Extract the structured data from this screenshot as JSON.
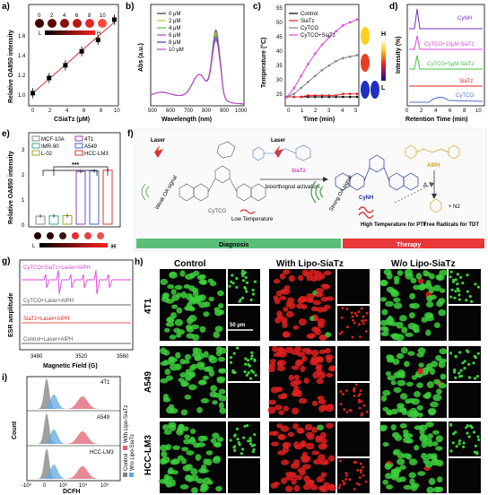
{
  "panels": {
    "a": {
      "label": "a)",
      "ylabel": "Relative OA850 intensity",
      "xlabel": "CSiaTz (μM)",
      "xticks": [
        "0",
        "2",
        "4",
        "6",
        "8",
        "10"
      ],
      "yticks": [
        "1.0",
        "1.2",
        "1.4",
        "1.6"
      ],
      "strip_labels": [
        "0",
        "2",
        "4",
        "6",
        "8",
        "10"
      ],
      "L": "L",
      "H": "H"
    },
    "b": {
      "label": "b)",
      "ylabel": "Abs (a.u.)",
      "xlabel": "Wavelength (nm)",
      "xticks": [
        "500",
        "600",
        "700",
        "800",
        "900",
        "1000"
      ],
      "legend": [
        "0 μM",
        "2 μM",
        "4 μM",
        "6 μM",
        "8 μM",
        "10 μM"
      ]
    },
    "c": {
      "label": "c)",
      "ylabel": "Temperature (°C)",
      "xlabel": "Time (min)",
      "xticks": [
        "0",
        "1",
        "2",
        "3",
        "4",
        "5"
      ],
      "yticks": [
        "25",
        "30",
        "35",
        "40",
        "45",
        "50",
        "55"
      ],
      "legend": [
        "Control",
        "SiaTz",
        "CyTCO",
        "CyTCO+SiaTz"
      ],
      "H": "H",
      "L": "L"
    },
    "d": {
      "label": "d)",
      "ylabel": "Intensity (%)",
      "xlabel": "Retention Time (min)",
      "xticks": [
        "0",
        "2",
        "4",
        "6",
        "8",
        "10"
      ],
      "traces": [
        "CyNH",
        "CyTCO+10μM SiaTz",
        "CyTCO+5μM SiaTz",
        "SiaTz",
        "CyTCO"
      ]
    },
    "e": {
      "label": "e)",
      "ylabel": "Relative OA850 intensity",
      "yticks": [
        "0",
        "1",
        "2",
        "3"
      ],
      "legend": [
        "MCF-10A",
        "IMR-90",
        "L-02",
        "4T1",
        "A549",
        "HCC-LM3"
      ],
      "sig": "***",
      "L": "L",
      "H": "H"
    },
    "f": {
      "label": "f)",
      "laser1": "Laser",
      "laser2": "Laser",
      "siatz": "SiaTz",
      "cytco": "CyTCO",
      "cynh": "CyNH",
      "activation": "bioorthognal activation",
      "weak": "Weak OA signal",
      "strong": "Strong OA signal",
      "low": "Low Temperature",
      "high": "High Temperature for PTT",
      "aiph": "AIPH",
      "delta": "Δ",
      "n2": "+ N2",
      "free": "Free Radicals for TDT",
      "diagnosis": "Diagnosis",
      "therapy": "Therapy"
    },
    "g": {
      "label": "g)",
      "ylabel": "ESR amplitude",
      "xlabel": "Magnetic Field (G)",
      "xticks": [
        "3480",
        "3520",
        "3560"
      ],
      "traces": [
        "CyTCO+SiaTz+Laser+AIPH",
        "CyTCO+Laser+AIPH",
        "SiaTz+Laser+AIPH",
        "Control+Laser+AIPH"
      ]
    },
    "h": {
      "label": "h)",
      "cols": [
        "Control",
        "With Lipo-SiaTz",
        "W/o Lipo-SiaTz"
      ],
      "rows": [
        "4T1",
        "A549",
        "HCC-LM3"
      ],
      "scale": "50 μm"
    },
    "i": {
      "label": "i)",
      "ylabel": "Count",
      "xlabel": "DCFH",
      "rows": [
        "4T1",
        "A549",
        "HCC-LM3"
      ],
      "xticks": [
        "-10³",
        "0",
        "10³",
        "10⁴",
        "10⁵"
      ],
      "legend": [
        "Control",
        "With Lipo-SiaTz",
        "W/o Lipo-SiaTz"
      ]
    }
  },
  "chart_data": [
    {
      "type": "scatter",
      "panel": "a",
      "x": [
        0,
        2,
        4,
        6,
        8,
        10
      ],
      "values": [
        1.0,
        1.12,
        1.22,
        1.33,
        1.42,
        1.58
      ],
      "xlim": [
        -0.5,
        10.5
      ],
      "ylim": [
        0.9,
        1.7
      ]
    },
    {
      "type": "line",
      "panel": "b",
      "xlim": [
        500,
        1000
      ],
      "series": [
        {
          "name": "0 μM",
          "peak": 0.66
        },
        {
          "name": "2 μM",
          "peak": 0.64
        },
        {
          "name": "4 μM",
          "peak": 0.62
        },
        {
          "name": "6 μM",
          "peak": 0.6
        },
        {
          "name": "8 μM",
          "peak": 0.58
        },
        {
          "name": "10 μM",
          "peak": 0.56
        }
      ]
    },
    {
      "type": "line",
      "panel": "c",
      "x": [
        0,
        0.5,
        1,
        1.5,
        2,
        2.5,
        3,
        3.5,
        4,
        4.5,
        5
      ],
      "ylim": [
        22,
        56
      ],
      "series": [
        {
          "name": "Control",
          "values": [
            25,
            25,
            25,
            25,
            25,
            25,
            25,
            25,
            25,
            25,
            25
          ]
        },
        {
          "name": "SiaTz",
          "values": [
            25,
            25,
            25,
            25.5,
            25.5,
            25.5,
            25.5,
            25.5,
            26,
            26,
            26
          ]
        },
        {
          "name": "CyTCO",
          "values": [
            25,
            26,
            28,
            30,
            32,
            34,
            35.5,
            37,
            38,
            38.5,
            39
          ]
        },
        {
          "name": "CyTCO+SiaTz",
          "values": [
            25,
            28,
            32,
            36,
            39.5,
            42.5,
            45,
            47,
            49,
            50,
            51
          ]
        }
      ]
    },
    {
      "type": "bar",
      "panel": "e",
      "categories": [
        "MCF-10A",
        "IMR-90",
        "L-02",
        "4T1",
        "A549",
        "HCC-LM3"
      ],
      "values": [
        0.32,
        0.33,
        0.34,
        2.1,
        2.12,
        2.15
      ],
      "ylim": [
        0,
        3
      ]
    }
  ]
}
